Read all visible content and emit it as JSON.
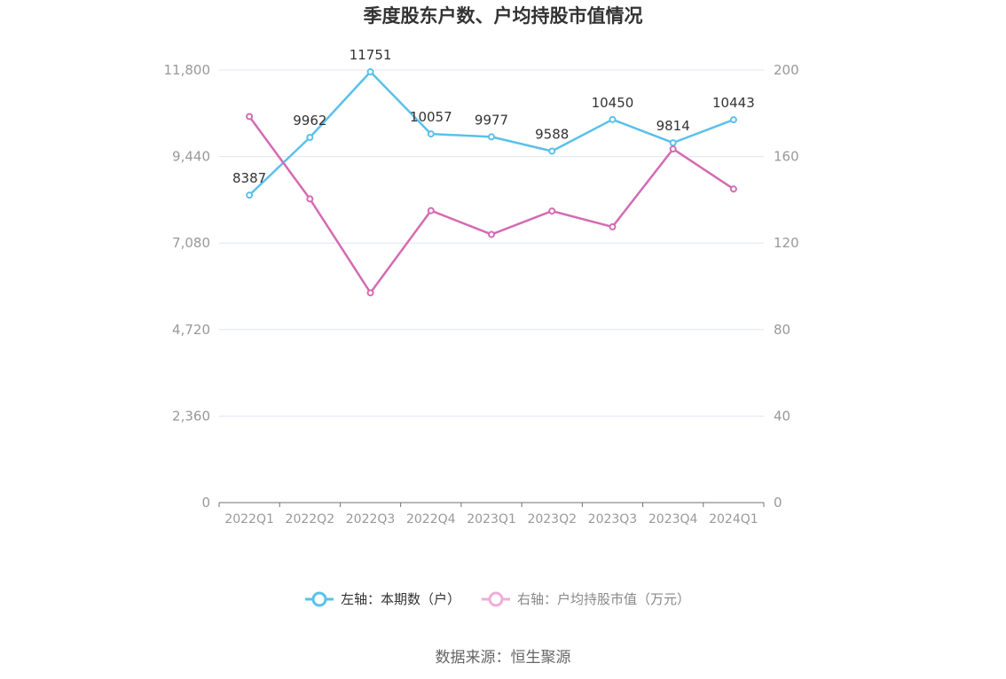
{
  "chart_data": {
    "type": "line",
    "title": "季度股东户数、户均持股市值情况",
    "categories": [
      "2022Q1",
      "2022Q2",
      "2022Q3",
      "2022Q4",
      "2023Q1",
      "2023Q2",
      "2023Q3",
      "2023Q4",
      "2024Q1"
    ],
    "series": [
      {
        "name": "左轴：本期数（户）",
        "axis": "left",
        "color": "#5bc0eb",
        "values": [
          8387,
          9962,
          11751,
          10057,
          9977,
          9588,
          10450,
          9814,
          10443
        ],
        "labels": [
          "8387",
          "9962",
          "11751",
          "10057",
          "9977",
          "9588",
          "10450",
          "9814",
          "10443"
        ]
      },
      {
        "name": "右轴：户均持股市值（万元）",
        "axis": "right",
        "color": "#d46bb3",
        "values": [
          178.5,
          140.4,
          97.0,
          135.0,
          124.0,
          134.8,
          127.5,
          163.5,
          145.0
        ]
      }
    ],
    "y_left": {
      "ylim": [
        0,
        11800
      ],
      "ticks": [
        "0",
        "2,360",
        "4,720",
        "7,080",
        "9,440",
        "11,800"
      ]
    },
    "y_right": {
      "ylim": [
        0,
        200
      ],
      "ticks": [
        "0",
        "40",
        "80",
        "120",
        "160",
        "200"
      ]
    },
    "grid": true,
    "legend_position": "bottom-center"
  },
  "source_text": "数据来源：恒生聚源"
}
